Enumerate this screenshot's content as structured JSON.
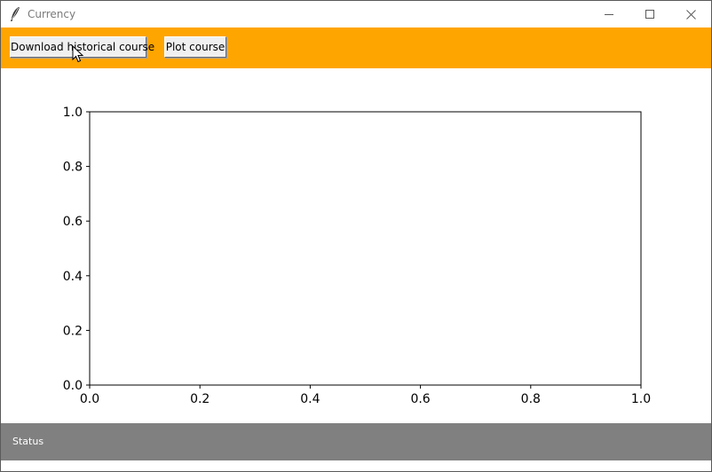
{
  "window": {
    "title": "Currency",
    "accent_toolbar": "#ffa500",
    "status_bar_color": "#808080"
  },
  "toolbar": {
    "download_label": "Download historical course",
    "plot_label": "Plot course"
  },
  "status": {
    "text": "Status"
  },
  "chart_data": {
    "type": "line",
    "series": [],
    "xlim": [
      0.0,
      1.0
    ],
    "ylim": [
      0.0,
      1.0
    ],
    "xticks": [
      "0.0",
      "0.2",
      "0.4",
      "0.6",
      "0.8",
      "1.0"
    ],
    "yticks": [
      "0.0",
      "0.2",
      "0.4",
      "0.6",
      "0.8",
      "1.0"
    ],
    "grid": false
  }
}
